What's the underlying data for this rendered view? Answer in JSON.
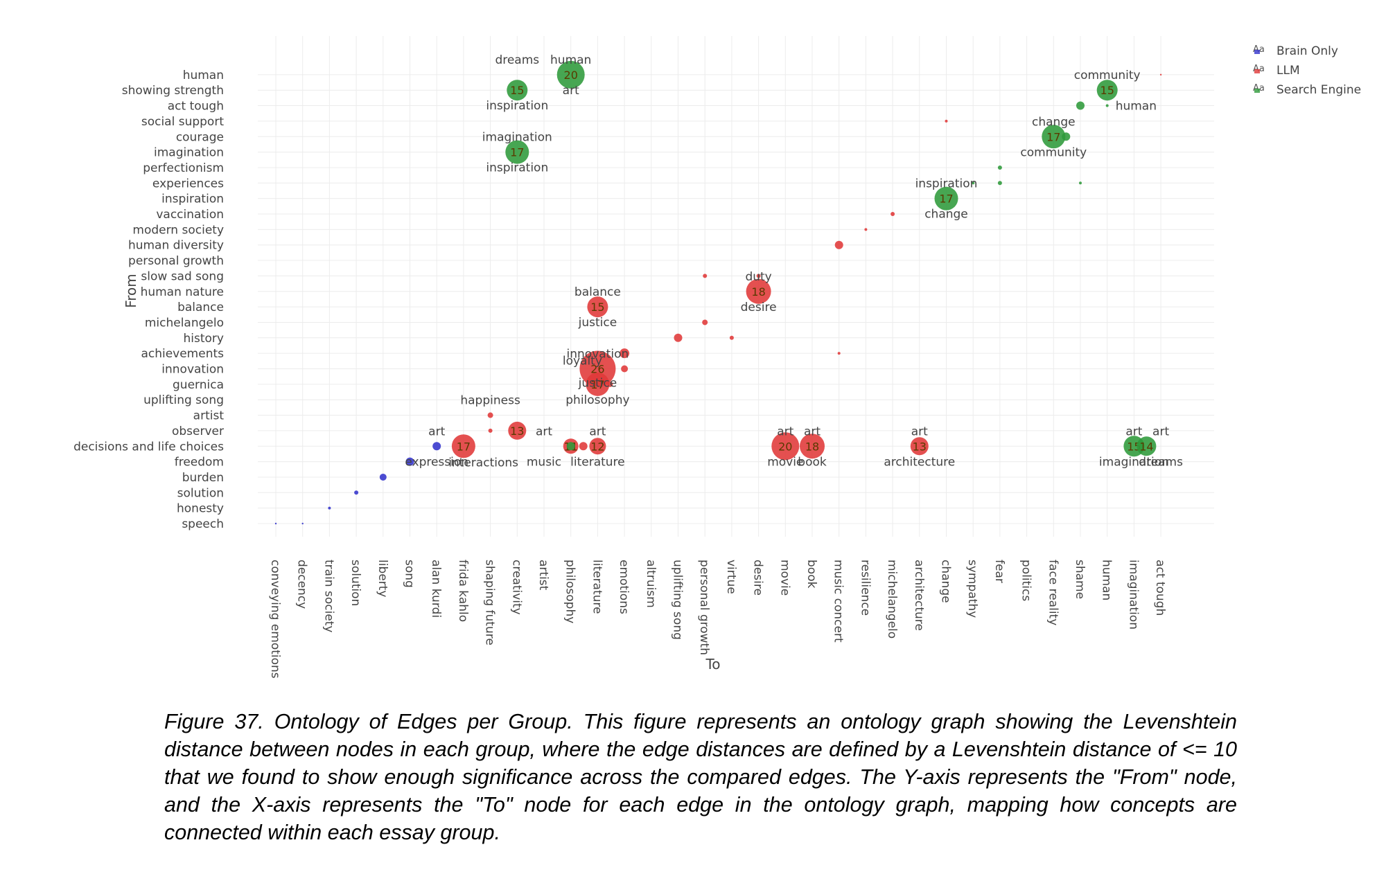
{
  "chart_data": {
    "type": "scatter",
    "xlabel": "To",
    "ylabel": "From",
    "x_categories": [
      "conveying emotions",
      "decency",
      "train society",
      "solution",
      "liberty",
      "song",
      "alan kurdi",
      "frida kahlo",
      "shaping future",
      "creativity",
      "artist",
      "philosophy",
      "literature",
      "emotions",
      "altruism",
      "uplifting song",
      "personal growth",
      "virtue",
      "desire",
      "movie",
      "book",
      "music concert",
      "resilience",
      "michelangelo",
      "architecture",
      "change",
      "sympathy",
      "fear",
      "politics",
      "face reality",
      "shame",
      "human",
      "imagination",
      "act tough"
    ],
    "y_categories": [
      "speech",
      "honesty",
      "solution",
      "burden",
      "freedom",
      "decisions and life choices",
      "observer",
      "artist",
      "uplifting song",
      "guernica",
      "innovation",
      "achievements",
      "history",
      "michelangelo",
      "balance",
      "human nature",
      "slow sad song",
      "personal growth",
      "human diversity",
      "modern society",
      "vaccination",
      "inspiration",
      "experiences",
      "perfectionism",
      "imagination",
      "courage",
      "social support",
      "act tough",
      "showing strength",
      "human"
    ],
    "legend": [
      "Brain Only",
      "LLM",
      "Search Engine"
    ],
    "legend_position": "top-right",
    "colors": {
      "Brain Only": "#3333cc",
      "LLM": "#e03838",
      "Search Engine": "#2e9a3a"
    },
    "grid": true,
    "series": [
      {
        "name": "Brain Only",
        "points": [
          {
            "x": "conveying emotions",
            "y": "speech",
            "value": 1
          },
          {
            "x": "decency",
            "y": "speech",
            "value": 1
          },
          {
            "x": "train society",
            "y": "honesty",
            "value": 2
          },
          {
            "x": "solution",
            "y": "solution",
            "value": 3
          },
          {
            "x": "liberty",
            "y": "burden",
            "value": 5
          },
          {
            "x": "song",
            "y": "freedom",
            "value": 6
          },
          {
            "x": "alan kurdi",
            "y": "decisions and life choices",
            "value": 6
          }
        ]
      },
      {
        "name": "LLM",
        "points": [
          {
            "x": "frida kahlo",
            "y": "decisions and life choices",
            "value": 17
          },
          {
            "x": "shaping future",
            "y": "observer",
            "value": 3
          },
          {
            "x": "shaping future",
            "y": "artist",
            "value": 4
          },
          {
            "x": "creativity",
            "y": "observer",
            "value": 13
          },
          {
            "x": "philosophy",
            "y": "decisions and life choices",
            "value": 11
          },
          {
            "x": "philosophy",
            "y": "decisions and life choices",
            "value": 6
          },
          {
            "x": "literature",
            "y": "guernica",
            "value": 4
          },
          {
            "x": "literature",
            "y": "guernica",
            "value": 17
          },
          {
            "x": "literature",
            "y": "innovation",
            "value": 26
          },
          {
            "x": "literature",
            "y": "balance",
            "value": 15
          },
          {
            "x": "literature",
            "y": "decisions and life choices",
            "value": 12
          },
          {
            "x": "emotions",
            "y": "innovation",
            "value": 5
          },
          {
            "x": "emotions",
            "y": "achievements",
            "value": 7
          },
          {
            "x": "uplifting song",
            "y": "history",
            "value": 6
          },
          {
            "x": "personal growth",
            "y": "michelangelo",
            "value": 4
          },
          {
            "x": "personal growth",
            "y": "slow sad song",
            "value": 3
          },
          {
            "x": "virtue",
            "y": "history",
            "value": 3
          },
          {
            "x": "desire",
            "y": "slow sad song",
            "value": 3
          },
          {
            "x": "desire",
            "y": "human nature",
            "value": 18
          },
          {
            "x": "movie",
            "y": "decisions and life choices",
            "value": 20
          },
          {
            "x": "book",
            "y": "decisions and life choices",
            "value": 18
          },
          {
            "x": "music concert",
            "y": "human diversity",
            "value": 6
          },
          {
            "x": "music concert",
            "y": "achievements",
            "value": 2
          },
          {
            "x": "resilience",
            "y": "modern society",
            "value": 2
          },
          {
            "x": "michelangelo",
            "y": "vaccination",
            "value": 3
          },
          {
            "x": "architecture",
            "y": "decisions and life choices",
            "value": 13
          },
          {
            "x": "change",
            "y": "social support",
            "value": 2
          },
          {
            "x": "act tough",
            "y": "human",
            "value": 1
          }
        ]
      },
      {
        "name": "Search Engine",
        "points": [
          {
            "x": "creativity",
            "y": "showing strength",
            "value": 15
          },
          {
            "x": "creativity",
            "y": "imagination",
            "value": 17
          },
          {
            "x": "philosophy",
            "y": "human",
            "value": 20
          },
          {
            "x": "philosophy",
            "y": "decisions and life choices",
            "value": 6
          },
          {
            "x": "change",
            "y": "inspiration",
            "value": 17
          },
          {
            "x": "sympathy",
            "y": "experiences",
            "value": 2
          },
          {
            "x": "fear",
            "y": "experiences",
            "value": 3
          },
          {
            "x": "fear",
            "y": "perfectionism",
            "value": 3
          },
          {
            "x": "face reality",
            "y": "courage",
            "value": 17
          },
          {
            "x": "face reality",
            "y": "courage",
            "value": 6
          },
          {
            "x": "shame",
            "y": "act tough",
            "value": 6
          },
          {
            "x": "shame",
            "y": "experiences",
            "value": 2
          },
          {
            "x": "human",
            "y": "showing strength",
            "value": 15
          },
          {
            "x": "human",
            "y": "act tough",
            "value": 2
          },
          {
            "x": "imagination",
            "y": "decisions and life choices",
            "value": 15
          },
          {
            "x": "imagination",
            "y": "decisions and life choices",
            "value": 14
          }
        ]
      }
    ],
    "annotations": [
      {
        "text": "dreams",
        "x": "creativity",
        "y": "human",
        "pos": "above"
      },
      {
        "text": "inspiration",
        "x": "creativity",
        "y": "showing strength",
        "pos": "below"
      },
      {
        "text": "human",
        "x": "philosophy",
        "y": "human",
        "pos": "above"
      },
      {
        "text": "art",
        "x": "philosophy",
        "y": "human",
        "pos": "below"
      },
      {
        "text": "imagination",
        "x": "creativity",
        "y": "imagination",
        "pos": "above"
      },
      {
        "text": "inspiration",
        "x": "creativity",
        "y": "imagination",
        "pos": "below"
      },
      {
        "text": "community",
        "x": "human",
        "y": "showing strength",
        "pos": "above"
      },
      {
        "text": "human",
        "x": "human",
        "y": "act tough",
        "pos": "right"
      },
      {
        "text": "change",
        "x": "face reality",
        "y": "courage",
        "pos": "above"
      },
      {
        "text": "community",
        "x": "face reality",
        "y": "courage",
        "pos": "below"
      },
      {
        "text": "inspiration",
        "x": "change",
        "y": "inspiration",
        "pos": "above"
      },
      {
        "text": "change",
        "x": "change",
        "y": "inspiration",
        "pos": "below"
      },
      {
        "text": "duty",
        "x": "desire",
        "y": "human nature",
        "pos": "above"
      },
      {
        "text": "desire",
        "x": "desire",
        "y": "human nature",
        "pos": "below"
      },
      {
        "text": "balance",
        "x": "literature",
        "y": "balance",
        "pos": "above"
      },
      {
        "text": "justice",
        "x": "literature",
        "y": "balance",
        "pos": "below"
      },
      {
        "text": "innovation",
        "x": "literature",
        "y": "innovation",
        "pos": "above"
      },
      {
        "text": "loyalty",
        "x": "literature",
        "y": "innovation",
        "pos": "overlap-left"
      },
      {
        "text": "justice",
        "x": "literature",
        "y": "innovation",
        "pos": "overlap-below"
      },
      {
        "text": "philosophy",
        "x": "literature",
        "y": "guernica",
        "pos": "below"
      },
      {
        "text": "happiness",
        "x": "shaping future",
        "y": "artist",
        "pos": "above"
      },
      {
        "text": "art",
        "x": "alan kurdi",
        "y": "decisions and life choices",
        "pos": "above"
      },
      {
        "text": "expression",
        "x": "alan kurdi",
        "y": "decisions and life choices",
        "pos": "below"
      },
      {
        "text": "interactions",
        "x": "shaping future",
        "y": "decisions and life choices",
        "pos": "center"
      },
      {
        "text": "art",
        "x": "artist",
        "y": "decisions and life choices",
        "pos": "above"
      },
      {
        "text": "music",
        "x": "artist",
        "y": "decisions and life choices",
        "pos": "below"
      },
      {
        "text": "art",
        "x": "literature",
        "y": "decisions and life choices",
        "pos": "above"
      },
      {
        "text": "literature",
        "x": "literature",
        "y": "decisions and life choices",
        "pos": "below"
      },
      {
        "text": "art",
        "x": "movie",
        "y": "decisions and life choices",
        "pos": "above"
      },
      {
        "text": "movie",
        "x": "movie",
        "y": "decisions and life choices",
        "pos": "below"
      },
      {
        "text": "art",
        "x": "book",
        "y": "decisions and life choices",
        "pos": "above"
      },
      {
        "text": "book",
        "x": "book",
        "y": "decisions and life choices",
        "pos": "below"
      },
      {
        "text": "art",
        "x": "architecture",
        "y": "decisions and life choices",
        "pos": "above"
      },
      {
        "text": "architecture",
        "x": "architecture",
        "y": "decisions and life choices",
        "pos": "below"
      },
      {
        "text": "art",
        "x": "imagination",
        "y": "decisions and life choices",
        "pos": "above"
      },
      {
        "text": "art",
        "x": "act tough",
        "y": "decisions and life choices",
        "pos": "above"
      },
      {
        "text": "imagination",
        "x": "imagination",
        "y": "decisions and life choices",
        "pos": "below"
      },
      {
        "text": "dreams",
        "x": "act tough",
        "y": "decisions and life choices",
        "pos": "below"
      }
    ]
  },
  "legend_marker": "Aa",
  "caption": "Figure 37. Ontology of Edges per Group. This figure represents an ontology graph showing the Levenshtein distance between nodes in each group, where the edge distances are defined by a Levenshtein distance of <= 10 that we found to show enough significance across the compared edges. The Y-axis represents the \"From\" node, and the X-axis represents the \"To\" node for each edge in the ontology graph, mapping how concepts are connected within each essay group."
}
